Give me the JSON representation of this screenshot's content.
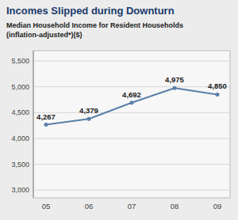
{
  "chart_data": {
    "type": "line",
    "title": "Incomes Slipped during Downturn",
    "subtitle": [
      "Median Household Income for Resident Households",
      "(inflation-adjusted*)($)"
    ],
    "categories": [
      "05",
      "06",
      "07",
      "08",
      "09"
    ],
    "values": [
      4267,
      4379,
      4692,
      4975,
      4850
    ],
    "value_labels": [
      "4,267",
      "4,379",
      "4,692",
      "4,975",
      "4,850"
    ],
    "data_labels": true,
    "color": "#5b7faa",
    "ylim": [
      2850,
      5700
    ],
    "yticks": [
      {
        "value": 3000,
        "label": "3,000"
      },
      {
        "value": 3500,
        "label": "3,500"
      },
      {
        "value": 4000,
        "label": "4,000"
      },
      {
        "value": 4500,
        "label": "4,500"
      },
      {
        "value": 5000,
        "label": "5,000"
      },
      {
        "value": 5500,
        "label": "5,500"
      }
    ],
    "grid": true
  }
}
